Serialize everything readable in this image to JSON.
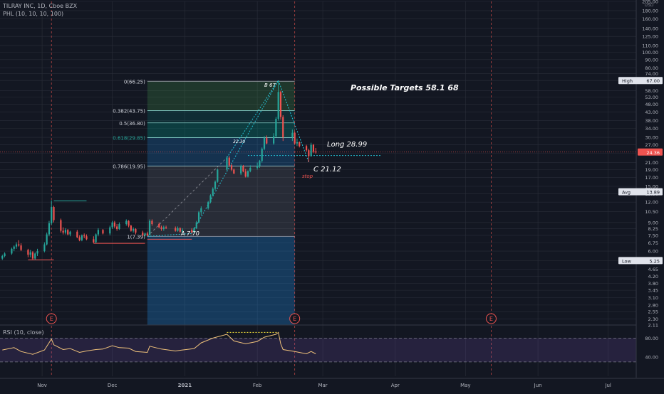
{
  "header": {
    "symbol_line": "TILRAY INC, 1D, Cboe BZX",
    "indicator_line": "PHL (10, 10, 10, 100)"
  },
  "price_axis": {
    "currency": "USD",
    "scale": "log",
    "ticks": [
      "205.00",
      "180.00",
      "160.00",
      "140.00",
      "125.00",
      "110.00",
      "100.00",
      "90.00",
      "80.00",
      "74.00",
      "67.00",
      "58.00",
      "53.00",
      "48.00",
      "43.00",
      "38.00",
      "34.00",
      "30.00",
      "27.00",
      "24.00",
      "21.00",
      "19.00",
      "17.00",
      "15.00",
      "13.50",
      "12.00",
      "10.50",
      "9.00",
      "8.25",
      "7.50",
      "6.75",
      "6.00",
      "5.25",
      "4.65",
      "4.20",
      "3.80",
      "3.45",
      "3.10",
      "2.80",
      "2.55",
      "2.30",
      "2.11"
    ],
    "labels": {
      "high": {
        "name": "High",
        "value": "67.00"
      },
      "current": {
        "value": "24.36"
      },
      "avg": {
        "name": "Avg",
        "value": "13.89"
      },
      "low": {
        "name": "Low",
        "value": "5.25"
      }
    }
  },
  "time_axis": {
    "ticks": [
      "Nov",
      "Dec",
      "2021",
      "Feb",
      "Mar",
      "Apr",
      "May",
      "Jun",
      "Jul"
    ]
  },
  "fib_levels": [
    {
      "label": "0(66.25)",
      "price": 66.25
    },
    {
      "label": "0.382(43.75)",
      "price": 43.75
    },
    {
      "label": "0.5(36.80)",
      "price": 36.8
    },
    {
      "label": "0.618(29.85)",
      "price": 29.85
    },
    {
      "label": "0.786(19.95)",
      "price": 19.95
    },
    {
      "label": "1(7.39)",
      "price": 7.39
    }
  ],
  "annotations": {
    "targets": "Possible Targets  58.1   68",
    "long": "Long 28.99",
    "c_point": "C 21.12",
    "stop": "stop",
    "b_point": "B 67",
    "a_point": "A 7.70",
    "mid_label": "32.30"
  },
  "earnings_markers": [
    {
      "label": "E"
    },
    {
      "label": "E"
    },
    {
      "label": "E"
    }
  ],
  "rsi": {
    "title": "RSI (10, close)",
    "ticks": [
      "80.00",
      "40.00"
    ],
    "bands": {
      "upper": 80,
      "lower": 30
    }
  },
  "colors": {
    "background": "#131722",
    "grid": "#2a2e39",
    "up": "#26a69a",
    "down": "#ef5350",
    "rsi_line": "#f0c27b",
    "fib_teal": "#26c6da",
    "accent": "#8eb5ff"
  },
  "chart_data": {
    "type": "candlestick",
    "title": "TILRAY INC, 1D, Cboe BZX",
    "y_scale": "log",
    "ylim": [
      2.11,
      205
    ],
    "x_range": [
      "2020-10-14",
      "2021-07-13"
    ],
    "candles": [
      {
        "date": "2020-10-15",
        "o": 5.4,
        "h": 5.7,
        "l": 5.3,
        "c": 5.6
      },
      {
        "date": "2020-10-16",
        "o": 5.6,
        "h": 5.9,
        "l": 5.5,
        "c": 5.8
      },
      {
        "date": "2020-10-19",
        "o": 5.8,
        "h": 6.3,
        "l": 5.7,
        "c": 6.2
      },
      {
        "date": "2020-10-20",
        "o": 6.2,
        "h": 6.5,
        "l": 6.0,
        "c": 6.4
      },
      {
        "date": "2020-10-21",
        "o": 6.4,
        "h": 6.8,
        "l": 6.2,
        "c": 6.6
      },
      {
        "date": "2020-10-22",
        "o": 6.6,
        "h": 7.0,
        "l": 6.4,
        "c": 6.5
      },
      {
        "date": "2020-10-23",
        "o": 6.5,
        "h": 6.7,
        "l": 6.0,
        "c": 6.1
      },
      {
        "date": "2020-10-26",
        "o": 6.1,
        "h": 6.2,
        "l": 5.5,
        "c": 5.7
      },
      {
        "date": "2020-10-27",
        "o": 5.7,
        "h": 6.1,
        "l": 5.5,
        "c": 5.9
      },
      {
        "date": "2020-10-28",
        "o": 5.9,
        "h": 6.0,
        "l": 5.3,
        "c": 5.4
      },
      {
        "date": "2020-10-29",
        "o": 5.4,
        "h": 5.9,
        "l": 5.3,
        "c": 5.8
      },
      {
        "date": "2020-10-30",
        "o": 5.8,
        "h": 6.2,
        "l": 5.6,
        "c": 6.0
      },
      {
        "date": "2020-11-02",
        "o": 6.0,
        "h": 6.8,
        "l": 5.9,
        "c": 6.6
      },
      {
        "date": "2020-11-03",
        "o": 6.6,
        "h": 7.8,
        "l": 6.5,
        "c": 7.6
      },
      {
        "date": "2020-11-04",
        "o": 7.6,
        "h": 9.2,
        "l": 7.4,
        "c": 8.9
      },
      {
        "date": "2020-11-05",
        "o": 8.9,
        "h": 12.3,
        "l": 8.7,
        "c": 11.2
      },
      {
        "date": "2020-11-06",
        "o": 11.2,
        "h": 11.4,
        "l": 9.0,
        "c": 9.3
      },
      {
        "date": "2020-11-09",
        "o": 9.3,
        "h": 9.5,
        "l": 7.8,
        "c": 8.0
      },
      {
        "date": "2020-11-10",
        "o": 8.0,
        "h": 8.4,
        "l": 7.6,
        "c": 7.8
      },
      {
        "date": "2020-11-11",
        "o": 7.8,
        "h": 8.3,
        "l": 7.6,
        "c": 8.1
      },
      {
        "date": "2020-11-12",
        "o": 8.1,
        "h": 8.2,
        "l": 7.5,
        "c": 7.6
      },
      {
        "date": "2020-11-13",
        "o": 7.6,
        "h": 8.0,
        "l": 7.4,
        "c": 7.9
      },
      {
        "date": "2020-11-16",
        "o": 7.9,
        "h": 8.1,
        "l": 7.2,
        "c": 7.3
      },
      {
        "date": "2020-11-17",
        "o": 7.3,
        "h": 7.5,
        "l": 6.9,
        "c": 7.0
      },
      {
        "date": "2020-11-18",
        "o": 7.0,
        "h": 7.6,
        "l": 6.9,
        "c": 7.5
      },
      {
        "date": "2020-11-19",
        "o": 7.5,
        "h": 7.7,
        "l": 7.2,
        "c": 7.4
      },
      {
        "date": "2020-11-20",
        "o": 7.4,
        "h": 7.6,
        "l": 7.0,
        "c": 7.1
      },
      {
        "date": "2020-11-23",
        "o": 7.1,
        "h": 7.4,
        "l": 6.7,
        "c": 6.8
      },
      {
        "date": "2020-11-24",
        "o": 6.8,
        "h": 7.7,
        "l": 6.7,
        "c": 7.6
      },
      {
        "date": "2020-11-25",
        "o": 7.6,
        "h": 8.3,
        "l": 7.4,
        "c": 8.1
      },
      {
        "date": "2020-11-27",
        "o": 8.1,
        "h": 8.2,
        "l": 7.6,
        "c": 7.7
      },
      {
        "date": "2020-11-30",
        "o": 7.7,
        "h": 8.6,
        "l": 7.5,
        "c": 8.4
      },
      {
        "date": "2020-12-01",
        "o": 8.4,
        "h": 9.2,
        "l": 8.2,
        "c": 9.0
      },
      {
        "date": "2020-12-02",
        "o": 9.0,
        "h": 9.2,
        "l": 8.3,
        "c": 8.5
      },
      {
        "date": "2020-12-03",
        "o": 8.5,
        "h": 8.8,
        "l": 8.0,
        "c": 8.2
      },
      {
        "date": "2020-12-04",
        "o": 8.2,
        "h": 9.0,
        "l": 8.1,
        "c": 8.8
      },
      {
        "date": "2020-12-07",
        "o": 8.8,
        "h": 9.4,
        "l": 8.6,
        "c": 9.2
      },
      {
        "date": "2020-12-08",
        "o": 9.2,
        "h": 9.3,
        "l": 8.4,
        "c": 8.6
      },
      {
        "date": "2020-12-09",
        "o": 8.6,
        "h": 8.7,
        "l": 7.9,
        "c": 8.0
      },
      {
        "date": "2020-12-10",
        "o": 8.0,
        "h": 8.4,
        "l": 7.8,
        "c": 8.2
      },
      {
        "date": "2020-12-11",
        "o": 8.2,
        "h": 8.3,
        "l": 7.6,
        "c": 7.8
      },
      {
        "date": "2020-12-14",
        "o": 7.8,
        "h": 8.0,
        "l": 7.4,
        "c": 7.5
      },
      {
        "date": "2020-12-15",
        "o": 7.5,
        "h": 7.8,
        "l": 7.4,
        "c": 7.7
      },
      {
        "date": "2020-12-16",
        "o": 7.7,
        "h": 7.9,
        "l": 7.39,
        "c": 7.5
      },
      {
        "date": "2020-12-17",
        "o": 7.5,
        "h": 9.4,
        "l": 7.5,
        "c": 9.2
      },
      {
        "date": "2020-12-18",
        "o": 9.2,
        "h": 9.4,
        "l": 8.6,
        "c": 8.8
      },
      {
        "date": "2020-12-21",
        "o": 8.8,
        "h": 9.0,
        "l": 8.3,
        "c": 8.4
      },
      {
        "date": "2020-12-22",
        "o": 8.4,
        "h": 8.6,
        "l": 8.0,
        "c": 8.2
      },
      {
        "date": "2020-12-23",
        "o": 8.2,
        "h": 8.6,
        "l": 8.0,
        "c": 8.4
      },
      {
        "date": "2020-12-24",
        "o": 8.4,
        "h": 8.6,
        "l": 8.2,
        "c": 8.3
      },
      {
        "date": "2020-12-28",
        "o": 8.3,
        "h": 8.5,
        "l": 7.9,
        "c": 8.0
      },
      {
        "date": "2020-12-29",
        "o": 8.0,
        "h": 8.5,
        "l": 7.9,
        "c": 8.3
      },
      {
        "date": "2020-12-30",
        "o": 8.3,
        "h": 8.4,
        "l": 7.8,
        "c": 7.9
      },
      {
        "date": "2020-12-31",
        "o": 7.9,
        "h": 8.3,
        "l": 7.7,
        "c": 8.1
      },
      {
        "date": "2021-01-04",
        "o": 8.1,
        "h": 8.3,
        "l": 7.7,
        "c": 7.8
      },
      {
        "date": "2021-01-05",
        "o": 7.8,
        "h": 8.4,
        "l": 7.7,
        "c": 8.3
      },
      {
        "date": "2021-01-06",
        "o": 8.3,
        "h": 9.2,
        "l": 8.2,
        "c": 9.0
      },
      {
        "date": "2021-01-07",
        "o": 9.0,
        "h": 10.6,
        "l": 8.9,
        "c": 10.4
      },
      {
        "date": "2021-01-08",
        "o": 10.4,
        "h": 11.3,
        "l": 10.0,
        "c": 11.0
      },
      {
        "date": "2021-01-11",
        "o": 11.0,
        "h": 12.2,
        "l": 10.8,
        "c": 12.0
      },
      {
        "date": "2021-01-12",
        "o": 12.0,
        "h": 13.4,
        "l": 11.8,
        "c": 13.2
      },
      {
        "date": "2021-01-13",
        "o": 13.2,
        "h": 14.8,
        "l": 13.0,
        "c": 14.5
      },
      {
        "date": "2021-01-14",
        "o": 14.5,
        "h": 16.3,
        "l": 14.2,
        "c": 16.0
      },
      {
        "date": "2021-01-15",
        "o": 16.0,
        "h": 19.3,
        "l": 15.8,
        "c": 19.0
      },
      {
        "date": "2021-01-19",
        "o": 19.0,
        "h": 23.0,
        "l": 18.8,
        "c": 22.5
      },
      {
        "date": "2021-01-20",
        "o": 22.5,
        "h": 23.0,
        "l": 19.8,
        "c": 20.2
      },
      {
        "date": "2021-01-21",
        "o": 20.2,
        "h": 20.6,
        "l": 18.6,
        "c": 19.0
      },
      {
        "date": "2021-01-22",
        "o": 19.0,
        "h": 19.3,
        "l": 17.8,
        "c": 18.0
      },
      {
        "date": "2021-01-25",
        "o": 18.0,
        "h": 20.4,
        "l": 17.6,
        "c": 20.0
      },
      {
        "date": "2021-01-26",
        "o": 20.0,
        "h": 20.3,
        "l": 18.3,
        "c": 18.5
      },
      {
        "date": "2021-01-27",
        "o": 18.5,
        "h": 19.2,
        "l": 17.0,
        "c": 17.2
      },
      {
        "date": "2021-01-28",
        "o": 17.2,
        "h": 18.8,
        "l": 17.0,
        "c": 18.6
      },
      {
        "date": "2021-01-29",
        "o": 18.6,
        "h": 20.2,
        "l": 18.3,
        "c": 19.5
      },
      {
        "date": "2021-02-01",
        "o": 19.5,
        "h": 21.0,
        "l": 19.0,
        "c": 20.0
      },
      {
        "date": "2021-02-02",
        "o": 20.0,
        "h": 21.8,
        "l": 19.5,
        "c": 21.5
      },
      {
        "date": "2021-02-03",
        "o": 21.5,
        "h": 26.0,
        "l": 21.0,
        "c": 25.5
      },
      {
        "date": "2021-02-04",
        "o": 25.5,
        "h": 30.5,
        "l": 25.0,
        "c": 29.8
      },
      {
        "date": "2021-02-05",
        "o": 29.8,
        "h": 30.8,
        "l": 27.2,
        "c": 27.5
      },
      {
        "date": "2021-02-08",
        "o": 27.5,
        "h": 31.8,
        "l": 27.0,
        "c": 30.5
      },
      {
        "date": "2021-02-09",
        "o": 30.5,
        "h": 40.0,
        "l": 30.0,
        "c": 39.0
      },
      {
        "date": "2021-02-10",
        "o": 39.0,
        "h": 67.0,
        "l": 38.0,
        "c": 57.0
      },
      {
        "date": "2021-02-11",
        "o": 57.0,
        "h": 58.0,
        "l": 38.5,
        "c": 40.0
      },
      {
        "date": "2021-02-12",
        "o": 40.0,
        "h": 41.0,
        "l": 28.5,
        "c": 30.0
      },
      {
        "date": "2021-02-16",
        "o": 30.0,
        "h": 33.5,
        "l": 28.5,
        "c": 32.0
      },
      {
        "date": "2021-02-17",
        "o": 32.0,
        "h": 32.5,
        "l": 27.0,
        "c": 27.5
      },
      {
        "date": "2021-02-18",
        "o": 27.5,
        "h": 29.5,
        "l": 26.5,
        "c": 28.0
      },
      {
        "date": "2021-02-19",
        "o": 28.0,
        "h": 28.3,
        "l": 26.0,
        "c": 26.5
      },
      {
        "date": "2021-02-22",
        "o": 26.5,
        "h": 27.0,
        "l": 24.5,
        "c": 25.0
      },
      {
        "date": "2021-02-23",
        "o": 25.0,
        "h": 25.5,
        "l": 21.12,
        "c": 23.0
      },
      {
        "date": "2021-02-24",
        "o": 23.0,
        "h": 27.8,
        "l": 22.8,
        "c": 27.0
      },
      {
        "date": "2021-02-25",
        "o": 27.0,
        "h": 27.3,
        "l": 24.0,
        "c": 24.5
      },
      {
        "date": "2021-02-26",
        "o": 24.5,
        "h": 25.8,
        "l": 23.8,
        "c": 24.36
      }
    ],
    "rsi_series": [
      {
        "date": "2020-10-15",
        "v": 55
      },
      {
        "date": "2020-10-20",
        "v": 60
      },
      {
        "date": "2020-10-23",
        "v": 52
      },
      {
        "date": "2020-10-28",
        "v": 46
      },
      {
        "date": "2020-11-02",
        "v": 55
      },
      {
        "date": "2020-11-05",
        "v": 78
      },
      {
        "date": "2020-11-06",
        "v": 66
      },
      {
        "date": "2020-11-10",
        "v": 56
      },
      {
        "date": "2020-11-13",
        "v": 58
      },
      {
        "date": "2020-11-17",
        "v": 50
      },
      {
        "date": "2020-11-20",
        "v": 53
      },
      {
        "date": "2020-11-24",
        "v": 56
      },
      {
        "date": "2020-11-27",
        "v": 57
      },
      {
        "date": "2020-12-01",
        "v": 64
      },
      {
        "date": "2020-12-04",
        "v": 60
      },
      {
        "date": "2020-12-08",
        "v": 59
      },
      {
        "date": "2020-12-11",
        "v": 52
      },
      {
        "date": "2020-12-16",
        "v": 50
      },
      {
        "date": "2020-12-17",
        "v": 63
      },
      {
        "date": "2020-12-22",
        "v": 57
      },
      {
        "date": "2020-12-28",
        "v": 53
      },
      {
        "date": "2020-12-31",
        "v": 55
      },
      {
        "date": "2021-01-05",
        "v": 58
      },
      {
        "date": "2021-01-08",
        "v": 70
      },
      {
        "date": "2021-01-13",
        "v": 80
      },
      {
        "date": "2021-01-19",
        "v": 88
      },
      {
        "date": "2021-01-22",
        "v": 74
      },
      {
        "date": "2021-01-27",
        "v": 68
      },
      {
        "date": "2021-02-01",
        "v": 73
      },
      {
        "date": "2021-02-04",
        "v": 82
      },
      {
        "date": "2021-02-09",
        "v": 88
      },
      {
        "date": "2021-02-10",
        "v": 92
      },
      {
        "date": "2021-02-11",
        "v": 68
      },
      {
        "date": "2021-02-12",
        "v": 56
      },
      {
        "date": "2021-02-17",
        "v": 52
      },
      {
        "date": "2021-02-22",
        "v": 47
      },
      {
        "date": "2021-02-24",
        "v": 52
      },
      {
        "date": "2021-02-26",
        "v": 47
      }
    ]
  }
}
